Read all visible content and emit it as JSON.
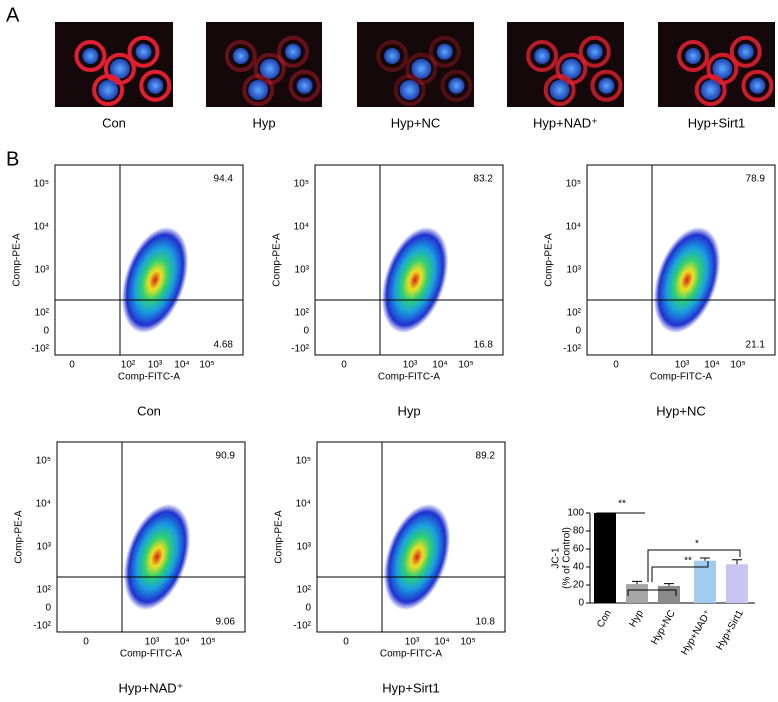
{
  "panel_a": {
    "label": "A",
    "images": [
      "Con",
      "Hyp",
      "Hyp+NC",
      "Hyp+NAD⁺",
      "Hyp+Sirt1"
    ]
  },
  "panel_b": {
    "label": "B",
    "flow_plots": [
      {
        "caption": "Con",
        "x_label": "Comp-FITC-A",
        "y_label": "Comp-PE-A",
        "xticks": [
          "0",
          "10²",
          "10³",
          "10⁴",
          "10⁵"
        ],
        "yticks": [
          "10⁵",
          "10⁴",
          "10³",
          "10²",
          "0",
          "-10²"
        ],
        "upper_right": 94.4,
        "lower_right": 4.68
      },
      {
        "caption": "Hyp",
        "x_label": "Comp-FITC-A",
        "y_label": "Comp-PE-A",
        "xticks": [
          "0",
          "10³",
          "10⁴",
          "10⁵"
        ],
        "yticks": [
          "10⁵",
          "10⁴",
          "10³",
          "10²",
          "0",
          "-10²"
        ],
        "upper_right": 83.2,
        "lower_right": 16.8
      },
      {
        "caption": "Hyp+NC",
        "x_label": "Comp-FITC-A",
        "y_label": "Comp-PE-A",
        "xticks": [
          "0",
          "10³",
          "10⁴",
          "10⁵"
        ],
        "yticks": [
          "10⁵",
          "10⁴",
          "10³",
          "10²",
          "0",
          "-10²"
        ],
        "upper_right": 78.9,
        "lower_right": 21.1
      },
      {
        "caption": "Hyp+NAD⁺",
        "x_label": "Comp-FITC-A",
        "y_label": "Comp-PE-A",
        "xticks": [
          "0",
          "10³",
          "10⁴",
          "10⁵"
        ],
        "yticks": [
          "10⁵",
          "10⁴",
          "10³",
          "10²",
          "0",
          "-10²"
        ],
        "upper_right": 90.9,
        "lower_right": 9.06
      },
      {
        "caption": "Hyp+Sirt1",
        "x_label": "Comp-FITC-A",
        "y_label": "Comp-PE-A",
        "xticks": [
          "0",
          "10³",
          "10⁴",
          "10⁵"
        ],
        "yticks": [
          "10⁵",
          "10⁴",
          "10³",
          "10²",
          "0",
          "-10²"
        ],
        "upper_right": 89.2,
        "lower_right": 10.8
      }
    ]
  },
  "chart_data": {
    "type": "bar",
    "y_label": [
      "JC-1",
      "(% of Control)"
    ],
    "categories": [
      "Con",
      "Hyp",
      "Hyp+NC",
      "Hyp+NAD⁺",
      "Hyp+Sirt1"
    ],
    "values": [
      100,
      21,
      19,
      47,
      43
    ],
    "errors": [
      0,
      3,
      2.5,
      3,
      5
    ],
    "colors": [
      "#000000",
      "#a6a6a6",
      "#8a8a8a",
      "#9fcbef",
      "#c9c5f2"
    ],
    "ylim": [
      0,
      100
    ],
    "yticks": [
      0,
      20,
      40,
      60,
      80,
      100
    ],
    "annotations": [
      "**",
      "**",
      "*"
    ]
  }
}
